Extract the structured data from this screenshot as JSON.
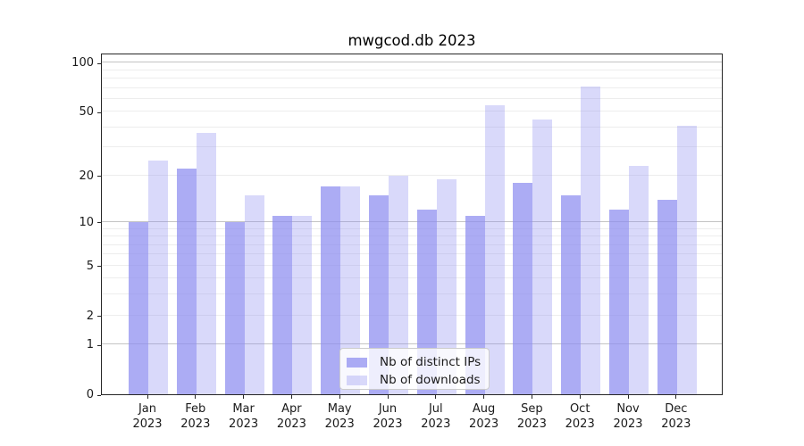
{
  "chart_data": {
    "type": "bar",
    "title": "mwgcod.db 2023",
    "categories": [
      "Jan 2023",
      "Feb 2023",
      "Mar 2023",
      "Apr 2023",
      "May 2023",
      "Jun 2023",
      "Jul 2023",
      "Aug 2023",
      "Sep 2023",
      "Oct 2023",
      "Nov 2023",
      "Dec 2023"
    ],
    "series": [
      {
        "name": "Nb of distinct IPs",
        "values": [
          10,
          22,
          10,
          11,
          17,
          15,
          12,
          11,
          18,
          15,
          12,
          14
        ]
      },
      {
        "name": "Nb of downloads",
        "values": [
          25,
          37,
          15,
          11,
          17,
          20,
          19,
          55,
          45,
          71,
          23,
          41
        ]
      }
    ],
    "yscale": "log(1+y)",
    "ylim": [
      0,
      115
    ],
    "yticks": [
      0,
      1,
      2,
      5,
      10,
      20,
      50,
      100
    ],
    "grid_major_values": [
      1,
      10,
      100
    ],
    "grid_minor_values": [
      2,
      3,
      4,
      5,
      6,
      7,
      8,
      9,
      20,
      30,
      40,
      50,
      60,
      70,
      80,
      90
    ],
    "grid": "horizontal",
    "xlabel": "",
    "ylabel": "",
    "legend_position": "lower center"
  },
  "legend": {
    "items": [
      {
        "label": "Nb of distinct IPs"
      },
      {
        "label": "Nb of downloads"
      }
    ]
  },
  "colors": {
    "ips_bar": "rgba(140,140,240,0.72)",
    "downloads_bar": "rgba(140,140,240,0.33)",
    "grid_major": "#c4c4c4",
    "grid_minor": "#ededed",
    "axis": "#262626",
    "text": "#1a1a1a",
    "legend_bg": "rgba(255,255,255,0.8)",
    "legend_border": "#cccccc"
  }
}
